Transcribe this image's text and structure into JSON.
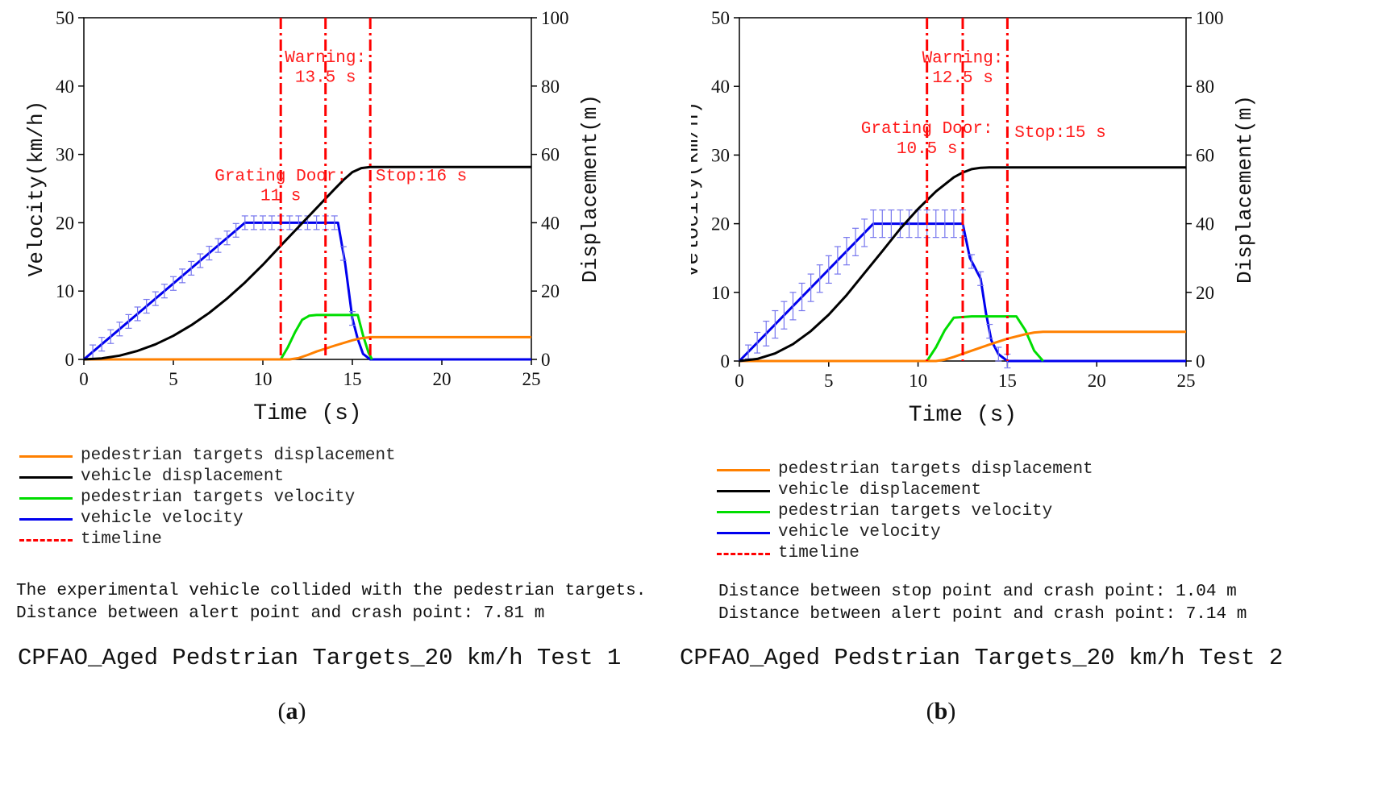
{
  "figure": {
    "panels": [
      {
        "label": "a",
        "title": "CPFAO_Aged Pedstrian Targets_20 km/h Test 1",
        "notes": [
          "The experimental vehicle collided with the pedestrian targets.",
          "Distance between alert point and crash point: 7.81 m"
        ]
      },
      {
        "label": "b",
        "title": "CPFAO_Aged Pedstrian Targets_20 km/h Test 2",
        "notes": [
          "Distance between stop point and crash point: 1.04 m",
          "Distance between alert point and crash point: 7.14 m"
        ]
      }
    ]
  },
  "legend": [
    {
      "label": "pedestrian targets displacement",
      "color": "#ff8000",
      "style": "solid"
    },
    {
      "label": "vehicle displacement",
      "color": "#000000",
      "style": "solid"
    },
    {
      "label": "pedestrian targets velocity",
      "color": "#00dd00",
      "style": "solid"
    },
    {
      "label": "vehicle velocity",
      "color": "#0000ee",
      "style": "solid"
    },
    {
      "label": "timeline",
      "color": "#ff0000",
      "style": "dashdot"
    }
  ],
  "chart_data": [
    {
      "type": "line",
      "xlabel": "Time (s)",
      "ylabel": "Velocity(km/h)",
      "y2label": "Displacement(m)",
      "xlim": [
        0,
        25
      ],
      "ylim": [
        0,
        50
      ],
      "y2lim": [
        0,
        100
      ],
      "xticks": [
        0,
        5,
        10,
        15,
        20,
        25
      ],
      "yticks": [
        0,
        10,
        20,
        30,
        40,
        50
      ],
      "y2ticks": [
        0,
        20,
        40,
        60,
        80,
        100
      ],
      "series": [
        {
          "name": "vehicle velocity",
          "axis": "left",
          "color": "#0000ee",
          "x": [
            0,
            9,
            14.2,
            14.6,
            15.0,
            15.3,
            15.6,
            16,
            25
          ],
          "y": [
            0,
            20,
            20,
            14,
            6,
            3,
            0.8,
            0,
            0
          ],
          "error_bars": {
            "x": [
              0.5,
              1,
              1.5,
              2,
              2.5,
              3,
              3.5,
              4,
              4.5,
              5,
              5.5,
              6,
              6.5,
              7,
              7.5,
              8,
              8.5,
              9,
              9.5,
              10,
              10.5,
              11,
              11.5,
              12,
              12.5,
              13,
              13.5,
              14,
              14.5,
              15
            ],
            "err": [
              1,
              1,
              1,
              1,
              1,
              1,
              1,
              1,
              1,
              1,
              1,
              1,
              1,
              1,
              1,
              1,
              1,
              1,
              1,
              1,
              1,
              1,
              1,
              1,
              1,
              1,
              1,
              1,
              1,
              1
            ]
          }
        },
        {
          "name": "pedestrian targets velocity",
          "axis": "left",
          "color": "#00dd00",
          "x": [
            11,
            11.4,
            11.8,
            12.2,
            12.6,
            13,
            14,
            15.3,
            15.6,
            15.9,
            16.1
          ],
          "y": [
            0,
            1.8,
            4,
            5.8,
            6.4,
            6.5,
            6.5,
            6.5,
            3.5,
            1,
            0
          ]
        },
        {
          "name": "pedestrian targets displacement",
          "axis": "right",
          "color": "#ff8000",
          "x": [
            0,
            11.5,
            12,
            12.5,
            13,
            14,
            15,
            15.5,
            16,
            25
          ],
          "y": [
            0,
            0,
            0.4,
            1.3,
            2.3,
            4,
            5.6,
            6.2,
            6.5,
            6.5
          ]
        },
        {
          "name": "vehicle displacement",
          "axis": "right",
          "color": "#000000",
          "x": [
            0,
            1,
            2,
            3,
            4,
            5,
            6,
            7,
            8,
            9,
            10,
            11,
            12,
            13,
            14,
            14.5,
            15,
            15.5,
            16,
            25
          ],
          "y": [
            0,
            0.3,
            1.1,
            2.5,
            4.4,
            6.9,
            10,
            13.6,
            17.8,
            22.5,
            27.7,
            33.3,
            38.8,
            44.3,
            49.8,
            52.5,
            54.8,
            56,
            56.3,
            56.3
          ]
        }
      ],
      "timelines": [
        11,
        13.5,
        16
      ],
      "annotations": [
        {
          "text": "Warning:",
          "x": 13.5,
          "y": 43.5
        },
        {
          "text": "13.5 s",
          "x": 13.5,
          "y": 40.6
        },
        {
          "text": "Grating Door:",
          "x": 11,
          "y": 26.2
        },
        {
          "text": "11 s",
          "x": 11,
          "y": 23.3
        },
        {
          "text": "Stop:16 s",
          "x": 16.3,
          "y": 26.2
        }
      ]
    },
    {
      "type": "line",
      "xlabel": "Time (s)",
      "ylabel": "Velocity(km/h)",
      "y2label": "Displacement(m)",
      "xlim": [
        0,
        25
      ],
      "ylim": [
        0,
        50
      ],
      "y2lim": [
        0,
        100
      ],
      "xticks": [
        0,
        5,
        10,
        15,
        20,
        25
      ],
      "yticks": [
        0,
        10,
        20,
        30,
        40,
        50
      ],
      "y2ticks": [
        0,
        20,
        40,
        60,
        80,
        100
      ],
      "series": [
        {
          "name": "vehicle velocity",
          "axis": "left",
          "color": "#0000ee",
          "x": [
            0,
            7.5,
            12.5,
            12.9,
            13.5,
            13.8,
            14.1,
            14.5,
            15,
            25
          ],
          "y": [
            0,
            20,
            20,
            15,
            12,
            7,
            3,
            1,
            0,
            0
          ],
          "error_bars": {
            "x": [
              0.5,
              1,
              1.5,
              2,
              2.5,
              3,
              3.5,
              4,
              4.5,
              5,
              5.5,
              6,
              6.5,
              7,
              7.5,
              8,
              8.5,
              9,
              9.5,
              10,
              10.5,
              11,
              11.5,
              12,
              12.5,
              13,
              13.5,
              14,
              14.5,
              15
            ],
            "err": [
              1,
              1.5,
              1.8,
              2,
              2,
              2,
              2,
              2,
              2,
              2,
              2,
              2,
              2,
              2,
              2,
              2,
              2,
              2,
              2,
              2,
              2,
              2,
              2,
              2,
              2,
              1,
              1,
              1,
              1,
              1
            ]
          }
        },
        {
          "name": "pedestrian targets velocity",
          "axis": "left",
          "color": "#00dd00",
          "x": [
            10.5,
            11,
            11.5,
            12,
            13,
            15.5,
            16,
            16.5,
            17
          ],
          "y": [
            0,
            2,
            4.5,
            6.3,
            6.5,
            6.5,
            4.5,
            1.5,
            0
          ]
        },
        {
          "name": "pedestrian targets displacement",
          "axis": "right",
          "color": "#ff8000",
          "x": [
            0,
            11,
            11.5,
            12,
            13,
            14,
            15,
            16,
            16.5,
            17,
            25
          ],
          "y": [
            0,
            0,
            0.4,
            1.2,
            3,
            4.8,
            6.5,
            7.8,
            8.3,
            8.5,
            8.5
          ]
        },
        {
          "name": "vehicle displacement",
          "axis": "right",
          "color": "#000000",
          "x": [
            0,
            1,
            2,
            3,
            4,
            5,
            6,
            7,
            8,
            9,
            10,
            11,
            12,
            12.5,
            13,
            13.5,
            14,
            14.5,
            15,
            25
          ],
          "y": [
            0,
            0.6,
            2.2,
            4.9,
            8.7,
            13.5,
            19.2,
            25.6,
            32,
            38.5,
            44.3,
            49.4,
            53.5,
            54.9,
            55.9,
            56.3,
            56.4,
            56.4,
            56.4,
            56.4
          ]
        }
      ],
      "timelines": [
        10.5,
        12.5,
        15
      ],
      "annotations": [
        {
          "text": "Warning:",
          "x": 12.5,
          "y": 43.5
        },
        {
          "text": "12.5 s",
          "x": 12.5,
          "y": 40.6
        },
        {
          "text": "Grating Door:",
          "x": 10.5,
          "y": 33.2
        },
        {
          "text": "10.5 s",
          "x": 10.5,
          "y": 30.3
        },
        {
          "text": "Stop:15 s",
          "x": 15.4,
          "y": 32.6
        }
      ]
    }
  ]
}
